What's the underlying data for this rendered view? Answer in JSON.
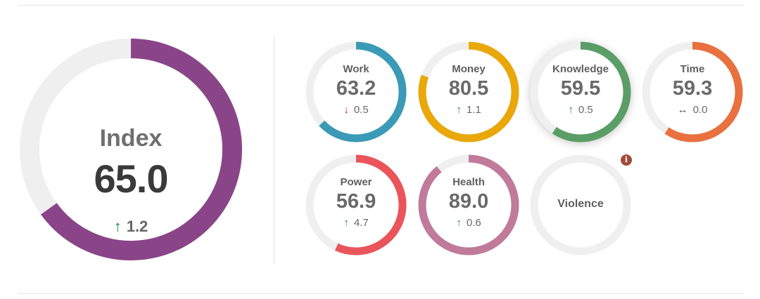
{
  "index": {
    "name": "Index",
    "value": "65.0",
    "delta": "1.2",
    "direction": "up",
    "fraction": 0.65,
    "color": "#8a4589"
  },
  "dimensions": [
    {
      "id": "work",
      "name": "Work",
      "value": "63.2",
      "delta": "0.5",
      "direction": "down",
      "fraction": 0.632,
      "color": "#3b9ab5"
    },
    {
      "id": "money",
      "name": "Money",
      "value": "80.5",
      "delta": "1.1",
      "direction": "up",
      "fraction": 0.805,
      "color": "#e9a70a"
    },
    {
      "id": "knowledge",
      "name": "Knowledge",
      "value": "59.5",
      "delta": "0.5",
      "direction": "up",
      "fraction": 0.595,
      "color": "#5a9d66",
      "selected": true
    },
    {
      "id": "time",
      "name": "Time",
      "value": "59.3",
      "delta": "0.0",
      "direction": "flat",
      "fraction": 0.593,
      "color": "#e8713f"
    },
    {
      "id": "power",
      "name": "Power",
      "value": "56.9",
      "delta": "4.7",
      "direction": "up",
      "fraction": 0.569,
      "color": "#e9555a"
    },
    {
      "id": "health",
      "name": "Health",
      "value": "89.0",
      "delta": "0.6",
      "direction": "up",
      "fraction": 0.89,
      "color": "#c07a9a"
    },
    {
      "id": "violence",
      "name": "Violence",
      "value": null,
      "delta": null,
      "direction": null,
      "fraction": 0,
      "color": "#eeeeee"
    }
  ],
  "info_icon": {
    "label": "i",
    "color": "#a34a3a"
  },
  "track_color": "#efefef"
}
